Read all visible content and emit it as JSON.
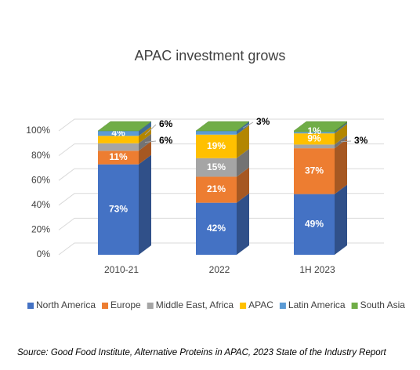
{
  "chart_data": {
    "type": "bar3d_stacked",
    "title": "APAC investment grows",
    "categories": [
      "2010-21",
      "2022",
      "1H 2023"
    ],
    "series": [
      {
        "name": "North America",
        "color": "#4472c4",
        "values": [
          73,
          42,
          49
        ],
        "value_labels": [
          "73%",
          "42%",
          "49%"
        ]
      },
      {
        "name": "Europe",
        "color": "#ed7d31",
        "values": [
          11,
          21,
          37
        ],
        "value_labels": [
          "11%",
          "21%",
          "37%"
        ]
      },
      {
        "name": "Middle East, Africa",
        "color": "#a5a5a5",
        "values": [
          6,
          15,
          3
        ],
        "value_labels": [
          "6%",
          "15%",
          "3%"
        ]
      },
      {
        "name": "APAC",
        "color": "#ffc000",
        "values": [
          6,
          19,
          9
        ],
        "value_labels": [
          "6%",
          "19%",
          "9%"
        ]
      },
      {
        "name": "Latin America",
        "color": "#5b9bd5",
        "values": [
          4,
          3,
          1
        ],
        "value_labels": [
          "4%",
          "3%",
          null
        ]
      },
      {
        "name": "South Asia",
        "color": "#70ad47",
        "values": [
          0,
          0,
          1
        ],
        "value_labels": [
          null,
          null,
          "1%"
        ]
      }
    ],
    "ylim": [
      0,
      100
    ],
    "yticks": [
      {
        "value": 0,
        "label": "0%"
      },
      {
        "value": 20,
        "label": "20%"
      },
      {
        "value": 40,
        "label": "40%"
      },
      {
        "value": 60,
        "label": "60%"
      },
      {
        "value": 80,
        "label": "80%"
      },
      {
        "value": 100,
        "label": "100%"
      }
    ],
    "grid": true,
    "legend": "bottom",
    "source": "Source: Good Food Institute, Alternative Proteins in APAC, 2023 State of the Industry Report"
  }
}
